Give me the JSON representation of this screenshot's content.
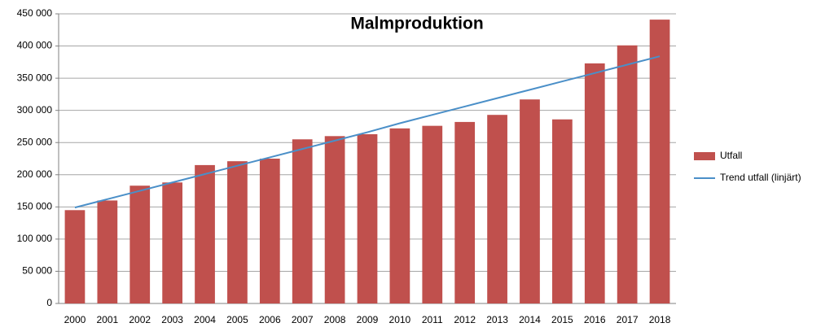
{
  "chart_data": {
    "type": "bar",
    "title": "Malmproduktion",
    "categories": [
      "2000",
      "2001",
      "2002",
      "2003",
      "2004",
      "2005",
      "2006",
      "2007",
      "2008",
      "2009",
      "2010",
      "2011",
      "2012",
      "2013",
      "2014",
      "2015",
      "2016",
      "2017",
      "2018"
    ],
    "series": [
      {
        "name": "Utfall",
        "type": "bar",
        "color": "#c0504d",
        "values": [
          145000,
          160000,
          183000,
          188000,
          215000,
          221000,
          225000,
          255000,
          260000,
          263000,
          272000,
          276000,
          282000,
          293000,
          317000,
          286000,
          373000,
          401000,
          441000
        ]
      },
      {
        "name": "Trend utfall (linjärt)",
        "type": "line",
        "color": "#4a8fc8",
        "values": [
          149000,
          162000,
          175000,
          188000,
          201000,
          214000,
          227000,
          240000,
          253000,
          266000,
          280000,
          293000,
          306000,
          319000,
          332000,
          345000,
          358000,
          371000,
          384000
        ]
      }
    ],
    "ylim": [
      0,
      450000
    ],
    "yticks": [
      0,
      {
        "value": 50000,
        "label": "50 000"
      },
      {
        "value": 100000,
        "label": "100 000"
      },
      {
        "value": 150000,
        "label": "150 000"
      },
      {
        "value": 200000,
        "label": "200 000"
      },
      {
        "value": 250000,
        "label": "250 000"
      },
      {
        "value": 300000,
        "label": "300 000"
      },
      {
        "value": 350000,
        "label": "350 000"
      },
      {
        "value": 400000,
        "label": "400 000"
      },
      {
        "value": 450000,
        "label": "450 000"
      }
    ],
    "grid": true,
    "legend": "right"
  }
}
